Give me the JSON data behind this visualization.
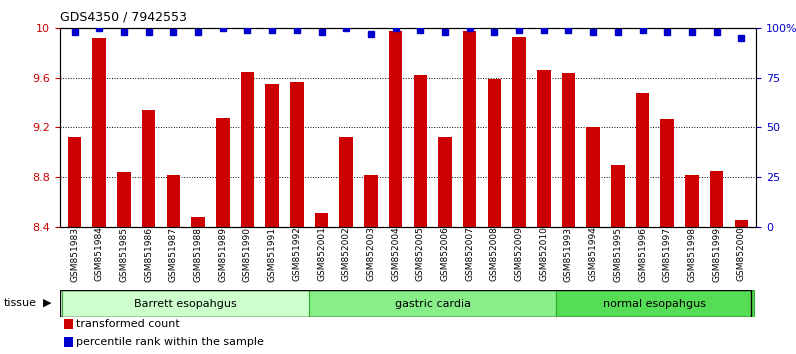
{
  "title": "GDS4350 / 7942553",
  "samples": [
    "GSM851983",
    "GSM851984",
    "GSM851985",
    "GSM851986",
    "GSM851987",
    "GSM851988",
    "GSM851989",
    "GSM851990",
    "GSM851991",
    "GSM851992",
    "GSM852001",
    "GSM852002",
    "GSM852003",
    "GSM852004",
    "GSM852005",
    "GSM852006",
    "GSM852007",
    "GSM852008",
    "GSM852009",
    "GSM852010",
    "GSM851993",
    "GSM851994",
    "GSM851995",
    "GSM851996",
    "GSM851997",
    "GSM851998",
    "GSM851999",
    "GSM852000"
  ],
  "red_values": [
    9.12,
    9.92,
    8.84,
    9.34,
    8.82,
    8.48,
    9.28,
    9.65,
    9.55,
    9.57,
    8.51,
    9.12,
    8.82,
    9.98,
    9.62,
    9.12,
    9.98,
    9.59,
    9.93,
    9.66,
    9.64,
    9.2,
    8.9,
    9.48,
    9.27,
    8.82,
    8.85,
    8.45
  ],
  "blue_values": [
    98,
    100,
    98,
    98,
    98,
    98,
    100,
    99,
    99,
    99,
    98,
    100,
    97,
    100,
    99,
    98,
    100,
    98,
    99,
    99,
    99,
    98,
    98,
    99,
    98,
    98,
    98,
    95
  ],
  "groups": [
    {
      "label": "Barrett esopahgus",
      "start": 0,
      "end": 10,
      "color": "#ccffcc"
    },
    {
      "label": "gastric cardia",
      "start": 10,
      "end": 20,
      "color": "#88ee88"
    },
    {
      "label": "normal esopahgus",
      "start": 20,
      "end": 28,
      "color": "#55dd55"
    }
  ],
  "ylim_left": [
    8.4,
    10.0
  ],
  "ymin": 8.4,
  "ylim_right": [
    0,
    100
  ],
  "yticks_left": [
    8.4,
    8.8,
    9.2,
    9.6,
    10.0
  ],
  "yticks_right": [
    0,
    25,
    50,
    75,
    100
  ],
  "bar_color": "#cc0000",
  "dot_color": "#0000cc",
  "tissue_label": "tissue",
  "legend_red": "transformed count",
  "legend_blue": "percentile rank within the sample",
  "background_color": "#ffffff",
  "tick_label_color_left": "#cc0000",
  "tick_label_color_right": "#0000cc"
}
